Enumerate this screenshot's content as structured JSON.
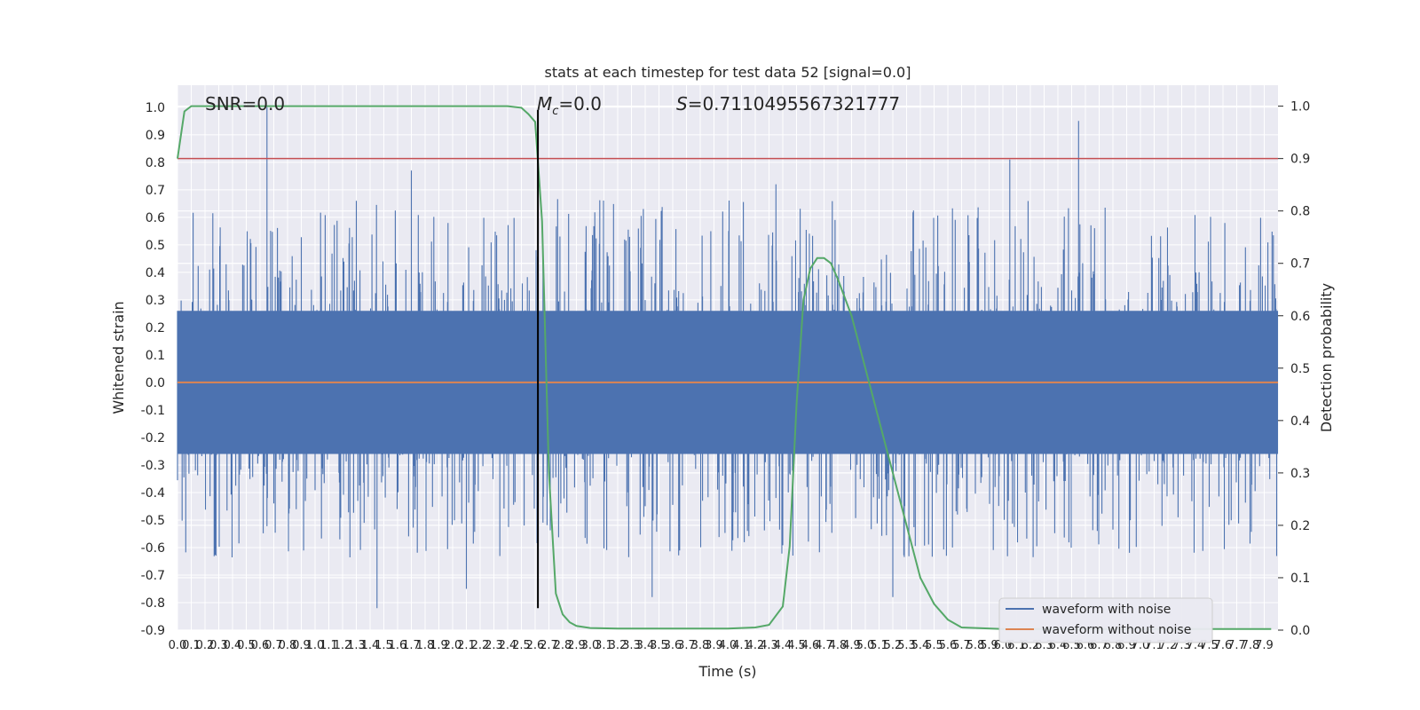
{
  "chart_data": {
    "type": "line",
    "title": "stats at each timestep for test data 52 [signal=0.0]",
    "xlabel": "Time (s)",
    "ylabel_left": "Whitened strain",
    "ylabel_right": "Detection probability",
    "xlim": [
      0,
      8.0
    ],
    "ylim_left": [
      -0.9,
      1.08
    ],
    "ylim_right": [
      0,
      1.04
    ],
    "x_ticks": [
      "0.0",
      "0.1",
      "0.2",
      "0.3",
      "0.4",
      "0.5",
      "0.6",
      "0.7",
      "0.8",
      "0.9",
      "1.0",
      "1.1",
      "1.2",
      "1.3",
      "1.4",
      "1.5",
      "1.6",
      "1.7",
      "1.8",
      "1.9",
      "2.0",
      "2.1",
      "2.2",
      "2.3",
      "2.4",
      "2.5",
      "2.6",
      "2.7",
      "2.8",
      "2.9",
      "3.0",
      "3.1",
      "3.2",
      "3.3",
      "3.4",
      "3.5",
      "3.6",
      "3.7",
      "3.8",
      "3.9",
      "4.0",
      "4.1",
      "4.2",
      "4.3",
      "4.4",
      "4.5",
      "4.6",
      "4.7",
      "4.8",
      "4.9",
      "5.0",
      "5.1",
      "5.2",
      "5.3",
      "5.4",
      "5.5",
      "5.6",
      "5.7",
      "5.8",
      "5.9",
      "6.0",
      "6.1",
      "6.2",
      "6.3",
      "6.4",
      "6.5",
      "6.6",
      "6.7",
      "6.8",
      "6.9",
      "7.0",
      "7.1",
      "7.2",
      "7.3",
      "7.4",
      "7.5",
      "7.6",
      "7.7",
      "7.8",
      "7.9"
    ],
    "y_ticks_left": [
      "-0.9",
      "-0.8",
      "-0.7",
      "-0.6",
      "-0.5",
      "-0.4",
      "-0.3",
      "-0.2",
      "-0.1",
      "0.0",
      "0.1",
      "0.2",
      "0.3",
      "0.4",
      "0.5",
      "0.6",
      "0.7",
      "0.8",
      "0.9",
      "1.0"
    ],
    "y_ticks_right": [
      "0.0",
      "0.1",
      "0.2",
      "0.3",
      "0.4",
      "0.5",
      "0.6",
      "0.7",
      "0.8",
      "0.9",
      "1.0"
    ],
    "grid": true,
    "legend_position": "lower-right",
    "annotations": {
      "snr": "SNR=0.0",
      "mc_symbol": "M",
      "mc_sub": "c",
      "mc_value": "=0.0",
      "s_symbol": "S",
      "s_value": "=0.7110495567321777"
    },
    "series": [
      {
        "name": "waveform with noise",
        "color": "#4c72b0",
        "axis": "left",
        "envelope": "dense noise, amplitude mostly within ±0.5, peaks near 1.0"
      },
      {
        "name": "waveform without noise",
        "color": "#dd8452",
        "axis": "left",
        "values_constant": 0.0
      },
      {
        "name": "",
        "color": "#55a868",
        "axis": "right",
        "x": [
          0.0,
          0.05,
          0.1,
          0.2,
          0.5,
          1.0,
          1.5,
          2.0,
          2.4,
          2.5,
          2.55,
          2.6,
          2.65,
          2.7,
          2.75,
          2.8,
          2.85,
          2.9,
          3.0,
          3.2,
          3.5,
          4.0,
          4.2,
          4.3,
          4.4,
          4.45,
          4.5,
          4.55,
          4.6,
          4.65,
          4.7,
          4.75,
          4.8,
          4.9,
          5.0,
          5.1,
          5.2,
          5.3,
          5.4,
          5.5,
          5.6,
          5.7,
          6.0,
          6.5,
          7.0,
          7.5,
          7.95
        ],
        "values": [
          0.9,
          0.99,
          1.0,
          1.0,
          1.0,
          1.0,
          1.0,
          1.0,
          1.0,
          0.997,
          0.985,
          0.97,
          0.78,
          0.3,
          0.07,
          0.03,
          0.015,
          0.008,
          0.004,
          0.003,
          0.003,
          0.003,
          0.005,
          0.01,
          0.045,
          0.16,
          0.43,
          0.63,
          0.69,
          0.71,
          0.71,
          0.7,
          0.67,
          0.6,
          0.5,
          0.4,
          0.3,
          0.2,
          0.1,
          0.05,
          0.02,
          0.005,
          0.002,
          0.002,
          0.002,
          0.002,
          0.002
        ]
      }
    ],
    "threshold_line": {
      "value": 0.9,
      "axis": "right",
      "color": "#c44e52"
    },
    "vertical_line": {
      "x": 2.62,
      "y_from": -0.82,
      "y_to": 0.99,
      "color": "#000000"
    }
  }
}
